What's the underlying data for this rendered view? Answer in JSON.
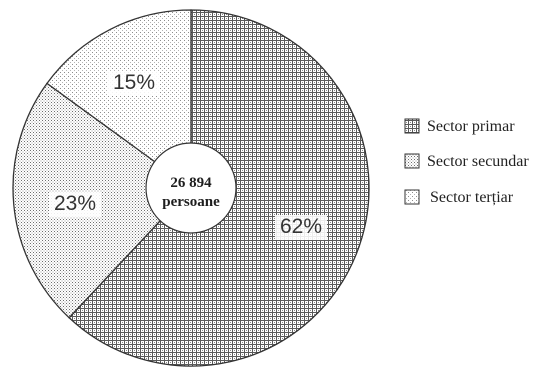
{
  "chart_data": {
    "type": "pie",
    "title": "",
    "center_label": {
      "line1": "26 894",
      "line2": "persoane"
    },
    "legend_position": "right",
    "slices": [
      {
        "name": "Sector primar",
        "value": 62,
        "label": "62%",
        "pattern": "dense-grid"
      },
      {
        "name": "Sector secundar",
        "value": 23,
        "label": "23%",
        "pattern": "medium-dots"
      },
      {
        "name": "Sector terțiar",
        "value": 15,
        "label": "15%",
        "pattern": "sparse-dots"
      }
    ]
  }
}
